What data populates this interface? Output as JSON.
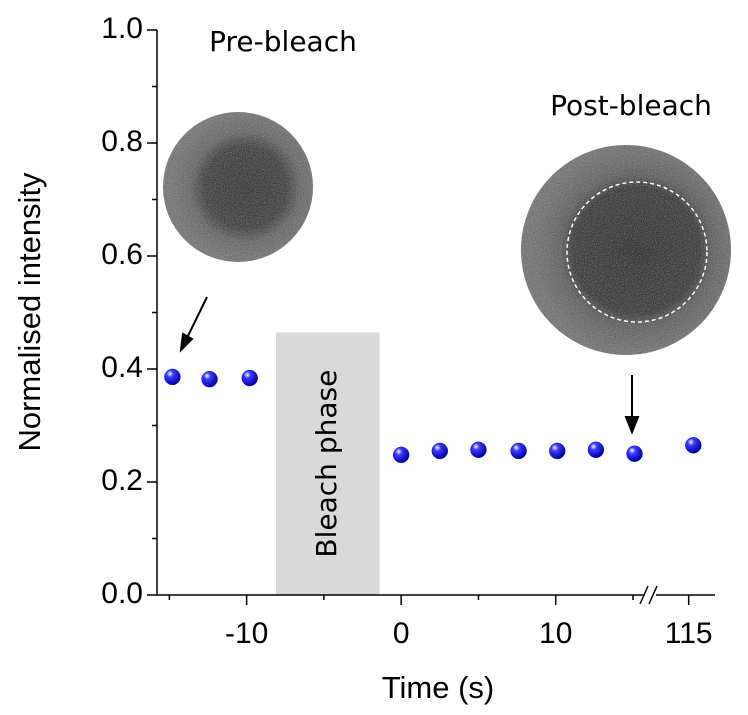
{
  "chart_data": {
    "type": "scatter",
    "xlabel": "Time (s)",
    "ylabel": "Normalised intensity",
    "x": [
      -14.8,
      -12.4,
      -9.8,
      0,
      2.5,
      5,
      7.6,
      10.1,
      12.6,
      15.1,
      115.3
    ],
    "values": [
      0.386,
      0.382,
      0.384,
      0.248,
      0.255,
      0.257,
      0.255,
      0.255,
      0.257,
      0.25,
      0.265
    ],
    "color": "#1a1aee",
    "xlim": [
      -15.8,
      16.1
    ],
    "xticks": [
      -10,
      0,
      10
    ],
    "xminorticks": [
      -15,
      -5,
      5,
      15
    ],
    "x2lim": [
      112.5,
      116.7
    ],
    "x2ticks": [
      115
    ],
    "ylim": [
      0,
      1
    ],
    "yticks": [
      {
        "value": 0,
        "label": "0.0"
      },
      0.2,
      0.4,
      0.6,
      0.8,
      {
        "value": 1,
        "label": "1.0"
      }
    ],
    "yminorticks": [
      0.1,
      0.3,
      0.5,
      0.7,
      0.9
    ],
    "bleach_band": {
      "label": "Bleach phase",
      "x": [
        -8.1,
        -1.4
      ],
      "top": 0.465,
      "color": "#d9d9d9"
    },
    "annotations": [
      "Pre-bleach",
      "Post-bleach"
    ]
  }
}
